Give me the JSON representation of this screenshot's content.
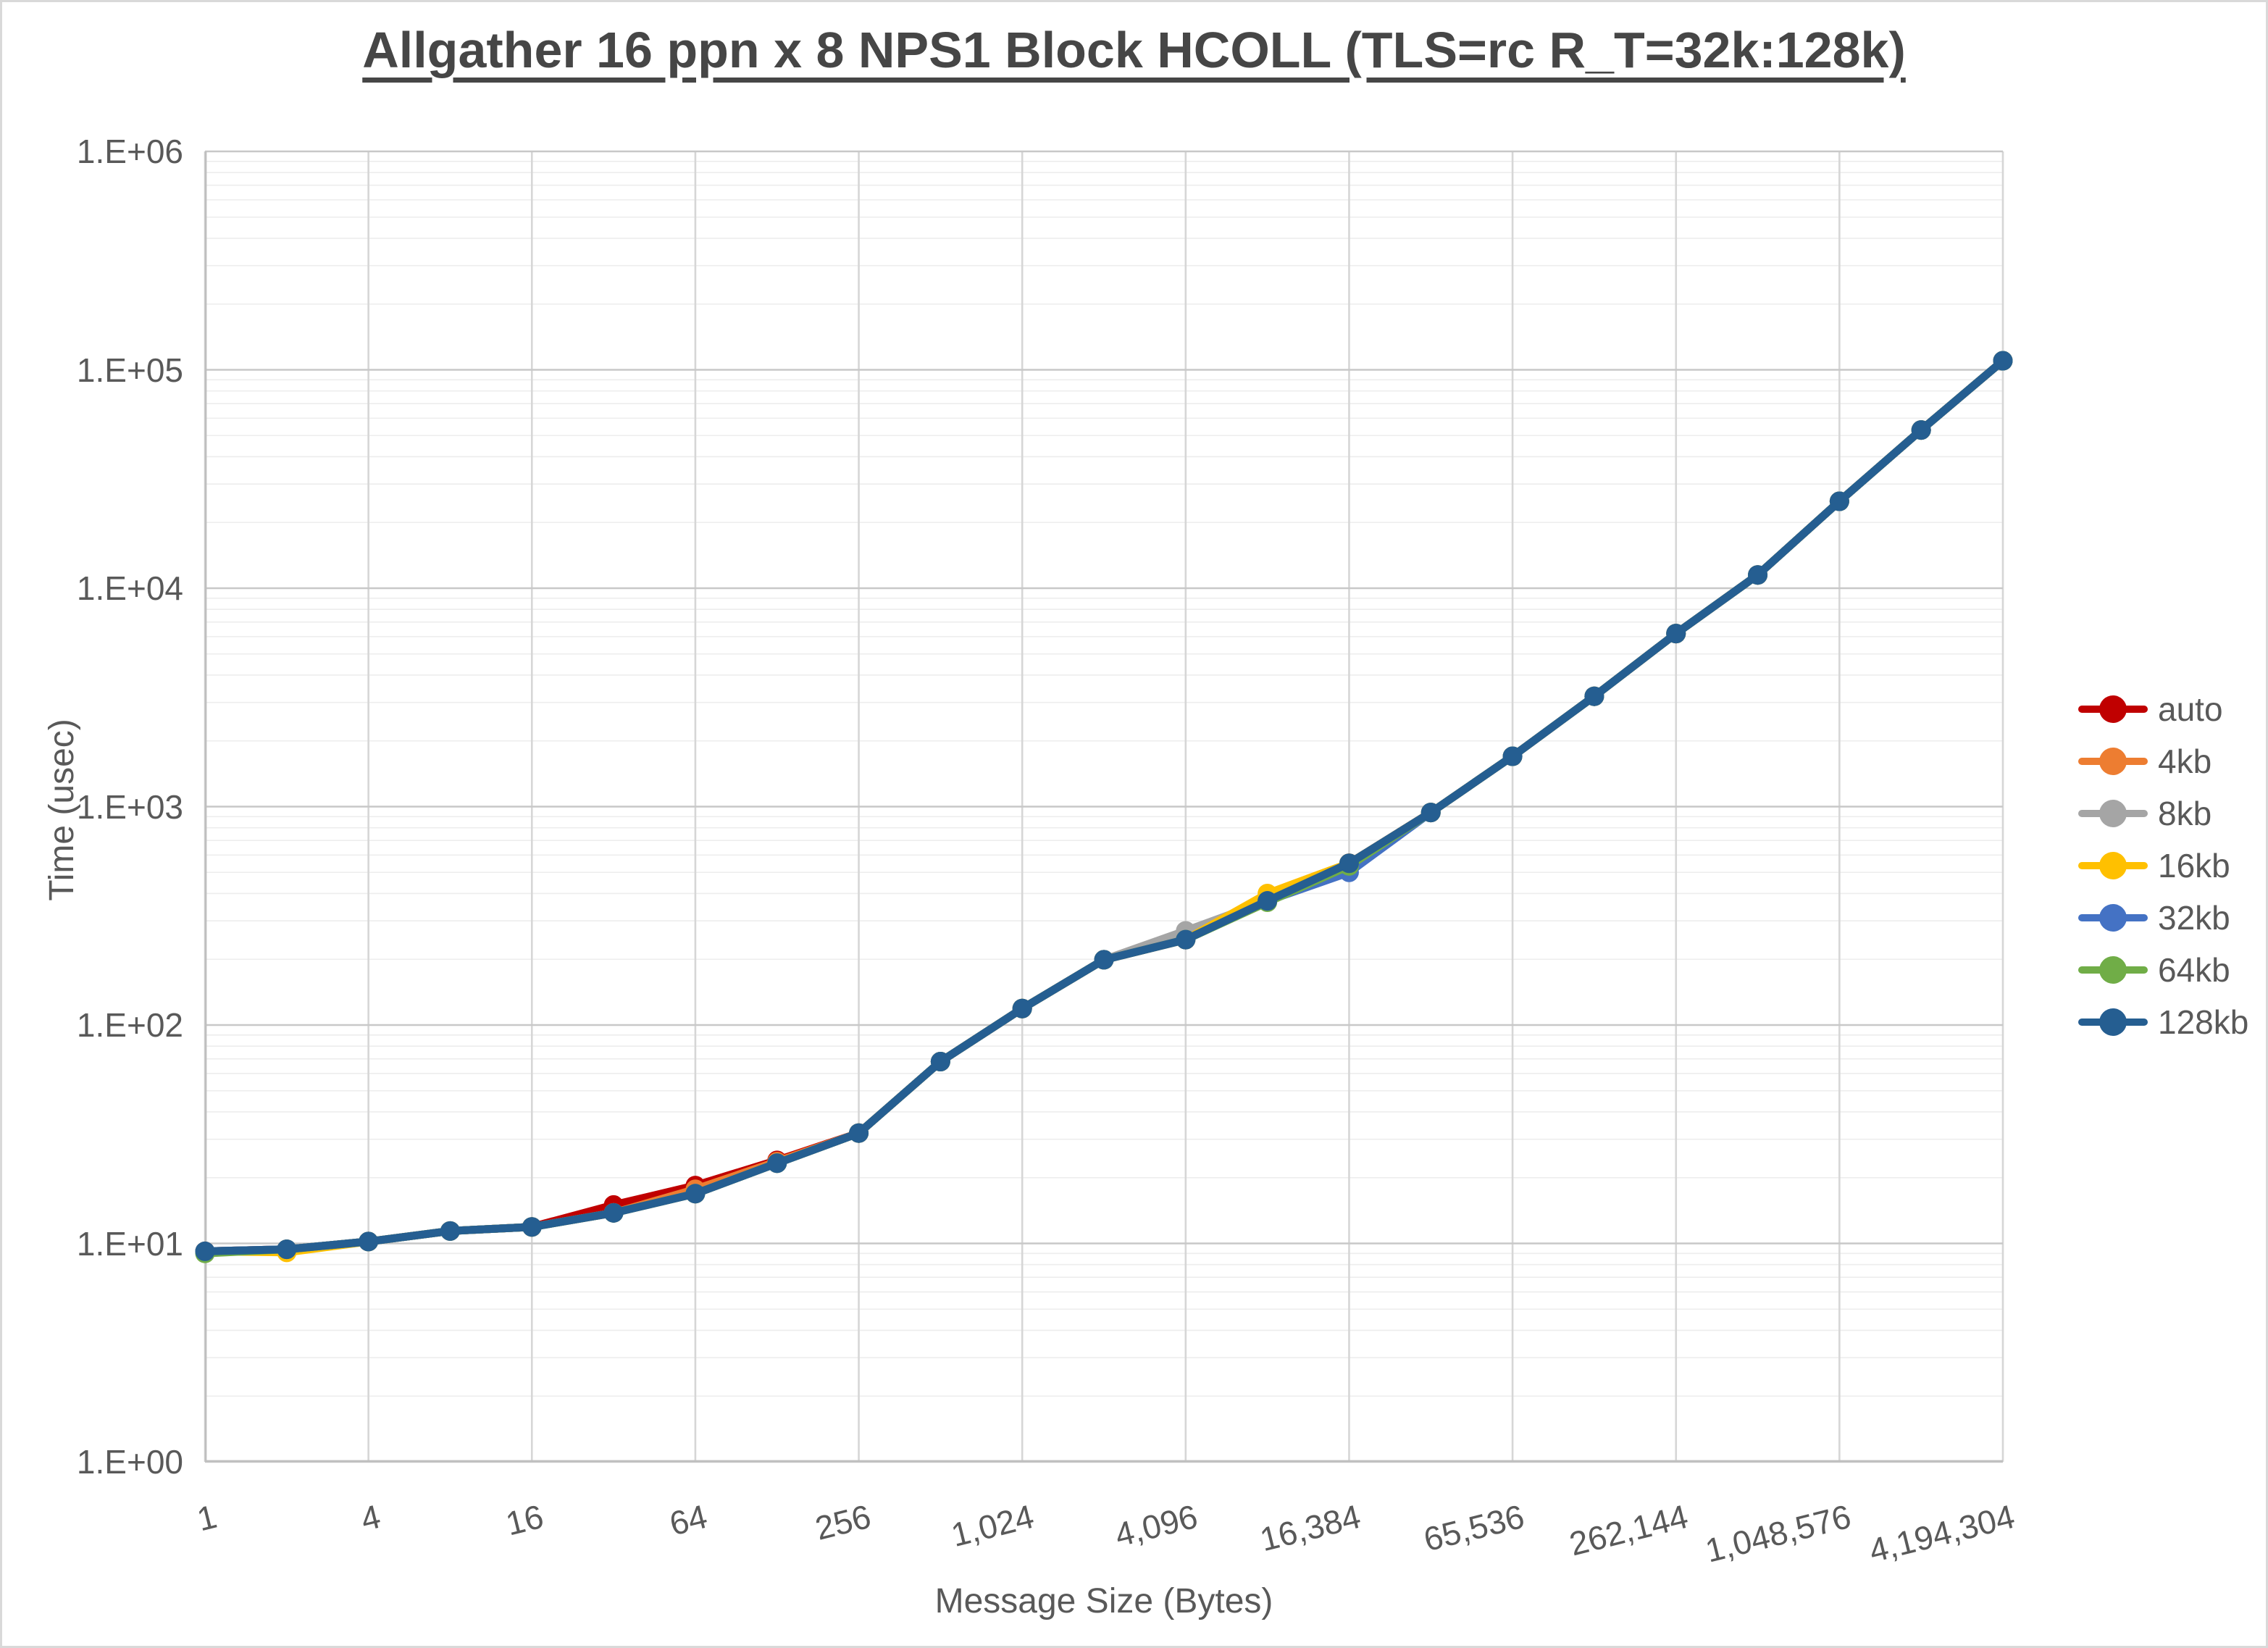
{
  "title": "Allgather 16 ppn x 8 NPS1 Block HCOLL (TLS=rc R_T=32k:128k)",
  "axes": {
    "y_label": "Time (usec)",
    "x_label": "Message Size (Bytes)",
    "y_tick_labels": [
      "1.E+00",
      "1.E+01",
      "1.E+02",
      "1.E+03",
      "1.E+04",
      "1.E+05",
      "1.E+06"
    ],
    "x_tick_labels": [
      "1",
      "4",
      "16",
      "64",
      "256",
      "1,024",
      "4,096",
      "16,384",
      "65,536",
      "262,144",
      "1,048,576",
      "4,194,304"
    ]
  },
  "chart_data": {
    "type": "line",
    "x_scale": "log2",
    "y_scale": "log10",
    "ylim": [
      1,
      1000000
    ],
    "xlim": [
      1,
      4194304
    ],
    "grid": "horizontal major+minor (log), vertical major every 4x",
    "legend_position": "right",
    "title": "Allgather 16 ppn x 8 NPS1 Block HCOLL (TLS=rc R_T=32k:128k)",
    "xlabel": "Message Size (Bytes)",
    "ylabel": "Time (usec)",
    "x": [
      1,
      2,
      4,
      8,
      16,
      32,
      64,
      128,
      256,
      512,
      1024,
      2048,
      4096,
      8192,
      16384,
      32768,
      65536,
      131072,
      262144,
      524288,
      1048576,
      2097152,
      4194304
    ],
    "x_tick_positions": [
      1,
      4,
      16,
      64,
      256,
      1024,
      4096,
      16384,
      65536,
      262144,
      1048576,
      4194304
    ],
    "series": [
      {
        "name": "auto",
        "color": "#C00000",
        "values": [
          9.2,
          9.4,
          10.2,
          11.4,
          11.9,
          15.0,
          18.4,
          24.0,
          32,
          68,
          119,
          199,
          246,
          370,
          550,
          940,
          1700,
          3200,
          6200,
          11500,
          25000,
          53000,
          110000
        ]
      },
      {
        "name": "4kb",
        "color": "#ED7D31",
        "values": [
          9.2,
          9.4,
          10.2,
          11.4,
          11.9,
          13.8,
          17.7,
          23.7,
          32,
          68,
          119,
          199,
          246,
          370,
          550,
          940,
          1700,
          3200,
          6200,
          11500,
          25000,
          53000,
          110000
        ]
      },
      {
        "name": "8kb",
        "color": "#A5A5A5",
        "values": [
          9.2,
          9.4,
          10.2,
          11.4,
          11.9,
          13.8,
          16.9,
          23.3,
          32,
          68,
          119,
          199,
          270,
          370,
          550,
          940,
          1700,
          3200,
          6200,
          11500,
          25000,
          53000,
          110000
        ]
      },
      {
        "name": "16kb",
        "color": "#FFC000",
        "values": [
          9.2,
          9.1,
          10.2,
          11.4,
          11.9,
          13.8,
          16.9,
          23.3,
          32,
          68,
          119,
          199,
          246,
          400,
          550,
          940,
          1700,
          3200,
          6200,
          11500,
          25000,
          53000,
          110000
        ]
      },
      {
        "name": "32kb",
        "color": "#4472C4",
        "values": [
          9.2,
          9.4,
          10.2,
          11.4,
          11.9,
          13.8,
          16.9,
          23.3,
          32,
          68,
          119,
          199,
          246,
          370,
          500,
          940,
          1700,
          3200,
          6200,
          11500,
          25000,
          53000,
          110000
        ]
      },
      {
        "name": "64kb",
        "color": "#70AD47",
        "values": [
          9.0,
          9.4,
          10.2,
          11.4,
          11.9,
          13.8,
          16.9,
          23.3,
          32,
          68,
          119,
          199,
          246,
          365,
          535,
          940,
          1700,
          3200,
          6200,
          11500,
          25000,
          53000,
          110000
        ]
      },
      {
        "name": "128kb",
        "color": "#255E91",
        "values": [
          9.2,
          9.4,
          10.2,
          11.4,
          11.9,
          13.8,
          16.9,
          23.3,
          32,
          68,
          119,
          199,
          246,
          370,
          550,
          940,
          1700,
          3200,
          6200,
          11500,
          25000,
          53000,
          110000
        ]
      }
    ],
    "colors": {
      "major_grid": "#c8c8c8",
      "minor_grid": "#ededed",
      "vertical_grid": "#d6d6d6",
      "axis_line": "#bfbfbf",
      "text": "#595959"
    }
  }
}
